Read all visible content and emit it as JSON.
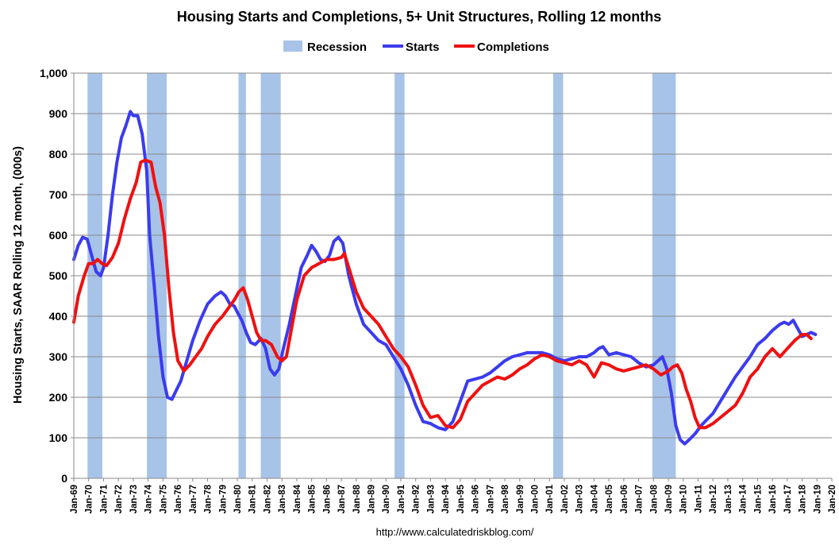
{
  "chart_data": {
    "type": "line",
    "title": "Housing Starts and Completions, 5+ Unit Structures, Rolling 12 months",
    "ylabel": "Housing Starts, SAAR Rolling 12 month, (000s)",
    "xlabel": "",
    "source": "http://www.calculatedriskblog.com/",
    "ylim": [
      0,
      1000
    ],
    "xlim": [
      1969,
      2020
    ],
    "yticks": [
      0,
      100,
      200,
      300,
      400,
      500,
      600,
      700,
      800,
      900,
      1000
    ],
    "ytick_labels": [
      "0",
      "100",
      "200",
      "300",
      "400",
      "500",
      "600",
      "700",
      "800",
      "900",
      "1,000"
    ],
    "xtick_labels": [
      "Jan-69",
      "Jan-70",
      "Jan-71",
      "Jan-72",
      "Jan-73",
      "Jan-74",
      "Jan-75",
      "Jan-76",
      "Jan-77",
      "Jan-78",
      "Jan-79",
      "Jan-80",
      "Jan-81",
      "Jan-82",
      "Jan-83",
      "Jan-84",
      "Jan-85",
      "Jan-86",
      "Jan-87",
      "Jan-88",
      "Jan-89",
      "Jan-90",
      "Jan-91",
      "Jan-92",
      "Jan-93",
      "Jan-94",
      "Jan-95",
      "Jan-96",
      "Jan-97",
      "Jan-98",
      "Jan-99",
      "Jan-00",
      "Jan-01",
      "Jan-02",
      "Jan-03",
      "Jan-04",
      "Jan-05",
      "Jan-06",
      "Jan-07",
      "Jan-08",
      "Jan-09",
      "Jan-10",
      "Jan-11",
      "Jan-12",
      "Jan-13",
      "Jan-14",
      "Jan-15",
      "Jan-16",
      "Jan-17",
      "Jan-18",
      "Jan-19",
      "Jan-20"
    ],
    "grid": true,
    "legend_position": "top-center",
    "legend": [
      {
        "label": "Recession",
        "color": "#a7c3e8",
        "kind": "bar"
      },
      {
        "label": "Starts",
        "color": "#3b3bef",
        "kind": "line"
      },
      {
        "label": "Completions",
        "color": "#f01010",
        "kind": "line"
      }
    ],
    "recessions": [
      {
        "start": 1969.92,
        "end": 1970.92
      },
      {
        "start": 1973.92,
        "end": 1975.25
      },
      {
        "start": 1980.08,
        "end": 1980.58
      },
      {
        "start": 1981.58,
        "end": 1982.92
      },
      {
        "start": 1990.58,
        "end": 1991.25
      },
      {
        "start": 2001.25,
        "end": 2001.92
      },
      {
        "start": 2007.92,
        "end": 2009.5
      }
    ],
    "series": [
      {
        "name": "Starts",
        "color": "#3b3bef",
        "x": [
          1969.0,
          1969.3,
          1969.6,
          1969.9,
          1970.2,
          1970.5,
          1970.8,
          1971.0,
          1971.3,
          1971.6,
          1971.9,
          1972.2,
          1972.5,
          1972.8,
          1973.0,
          1973.3,
          1973.6,
          1973.9,
          1974.1,
          1974.4,
          1974.7,
          1975.0,
          1975.3,
          1975.6,
          1975.8,
          1976.2,
          1976.6,
          1977.0,
          1977.5,
          1978.0,
          1978.5,
          1978.9,
          1979.2,
          1979.5,
          1979.8,
          1980.0,
          1980.3,
          1980.6,
          1980.9,
          1981.2,
          1981.6,
          1981.9,
          1982.2,
          1982.5,
          1982.8,
          1983.1,
          1983.5,
          1983.9,
          1984.3,
          1984.7,
          1985.0,
          1985.3,
          1985.6,
          1985.9,
          1986.2,
          1986.5,
          1986.8,
          1987.1,
          1987.5,
          1988.0,
          1988.5,
          1989.0,
          1989.5,
          1990.0,
          1990.5,
          1991.0,
          1991.5,
          1992.0,
          1992.5,
          1993.0,
          1993.5,
          1994.0,
          1994.5,
          1995.0,
          1995.5,
          1996.0,
          1996.5,
          1997.0,
          1997.5,
          1998.0,
          1998.5,
          1999.0,
          1999.5,
          2000.0,
          2000.5,
          2001.0,
          2001.5,
          2002.0,
          2002.5,
          2003.0,
          2003.5,
          2004.0,
          2004.3,
          2004.6,
          2005.0,
          2005.5,
          2006.0,
          2006.5,
          2007.0,
          2007.5,
          2008.0,
          2008.3,
          2008.6,
          2008.9,
          2009.2,
          2009.5,
          2009.8,
          2010.1,
          2010.4,
          2010.8,
          2011.2,
          2011.6,
          2012.0,
          2012.5,
          2013.0,
          2013.5,
          2014.0,
          2014.5,
          2015.0,
          2015.5,
          2016.0,
          2016.5,
          2016.8,
          2017.1,
          2017.4,
          2017.7,
          2018.0,
          2018.3,
          2018.6,
          2018.9
        ],
        "y": [
          540,
          575,
          595,
          590,
          550,
          510,
          500,
          520,
          600,
          700,
          780,
          840,
          870,
          905,
          895,
          895,
          850,
          760,
          600,
          480,
          350,
          250,
          200,
          195,
          210,
          240,
          290,
          340,
          390,
          430,
          450,
          460,
          450,
          430,
          425,
          410,
          390,
          360,
          335,
          330,
          345,
          320,
          270,
          255,
          270,
          320,
          380,
          450,
          520,
          550,
          575,
          560,
          540,
          535,
          550,
          585,
          595,
          580,
          500,
          430,
          380,
          360,
          340,
          330,
          300,
          270,
          230,
          180,
          140,
          135,
          125,
          120,
          140,
          190,
          240,
          245,
          250,
          260,
          275,
          290,
          300,
          305,
          310,
          310,
          310,
          305,
          295,
          290,
          295,
          300,
          300,
          310,
          320,
          325,
          305,
          310,
          305,
          300,
          285,
          275,
          280,
          290,
          300,
          270,
          210,
          130,
          95,
          85,
          95,
          110,
          130,
          145,
          160,
          190,
          220,
          250,
          275,
          300,
          330,
          345,
          365,
          380,
          385,
          380,
          390,
          370,
          350,
          355,
          360,
          355
        ]
      },
      {
        "name": "Completions",
        "color": "#f01010",
        "x": [
          1969.0,
          1969.3,
          1969.7,
          1970.0,
          1970.3,
          1970.6,
          1970.9,
          1971.2,
          1971.6,
          1972.0,
          1972.4,
          1972.8,
          1973.2,
          1973.5,
          1973.8,
          1974.2,
          1974.5,
          1974.8,
          1975.1,
          1975.4,
          1975.7,
          1976.0,
          1976.4,
          1976.8,
          1977.2,
          1977.6,
          1978.0,
          1978.5,
          1979.0,
          1979.4,
          1979.8,
          1980.1,
          1980.4,
          1980.7,
          1981.0,
          1981.3,
          1981.6,
          1981.9,
          1982.3,
          1982.7,
          1983.0,
          1983.3,
          1983.6,
          1984.0,
          1984.5,
          1985.0,
          1985.5,
          1986.0,
          1986.5,
          1987.0,
          1987.2,
          1987.5,
          1988.0,
          1988.5,
          1989.0,
          1989.5,
          1990.0,
          1990.5,
          1991.0,
          1991.5,
          1992.0,
          1992.5,
          1993.0,
          1993.5,
          1994.0,
          1994.5,
          1995.0,
          1995.5,
          1996.0,
          1996.5,
          1997.0,
          1997.5,
          1998.0,
          1998.5,
          1999.0,
          1999.5,
          2000.0,
          2000.5,
          2001.0,
          2001.5,
          2002.0,
          2002.5,
          2003.0,
          2003.5,
          2004.0,
          2004.5,
          2005.0,
          2005.5,
          2006.0,
          2006.5,
          2007.0,
          2007.5,
          2008.0,
          2008.5,
          2009.0,
          2009.3,
          2009.6,
          2009.9,
          2010.2,
          2010.5,
          2010.8,
          2011.1,
          2011.5,
          2012.0,
          2012.5,
          2013.0,
          2013.5,
          2014.0,
          2014.5,
          2015.0,
          2015.5,
          2016.0,
          2016.5,
          2017.0,
          2017.5,
          2018.0,
          2018.3,
          2018.6
        ],
        "y": [
          385,
          450,
          500,
          530,
          530,
          540,
          530,
          525,
          545,
          580,
          640,
          690,
          730,
          780,
          785,
          780,
          720,
          680,
          600,
          470,
          360,
          290,
          265,
          280,
          300,
          320,
          350,
          380,
          400,
          420,
          440,
          460,
          470,
          440,
          400,
          360,
          340,
          340,
          330,
          300,
          290,
          300,
          360,
          440,
          500,
          520,
          530,
          540,
          540,
          545,
          555,
          520,
          460,
          420,
          400,
          380,
          350,
          320,
          300,
          275,
          230,
          180,
          150,
          155,
          130,
          125,
          145,
          190,
          210,
          230,
          240,
          250,
          245,
          255,
          270,
          280,
          295,
          305,
          300,
          290,
          285,
          280,
          290,
          280,
          250,
          285,
          280,
          270,
          265,
          270,
          275,
          280,
          270,
          255,
          265,
          275,
          280,
          260,
          220,
          190,
          150,
          125,
          125,
          135,
          150,
          165,
          180,
          210,
          250,
          270,
          300,
          320,
          300,
          320,
          340,
          355,
          355,
          345
        ]
      }
    ]
  }
}
